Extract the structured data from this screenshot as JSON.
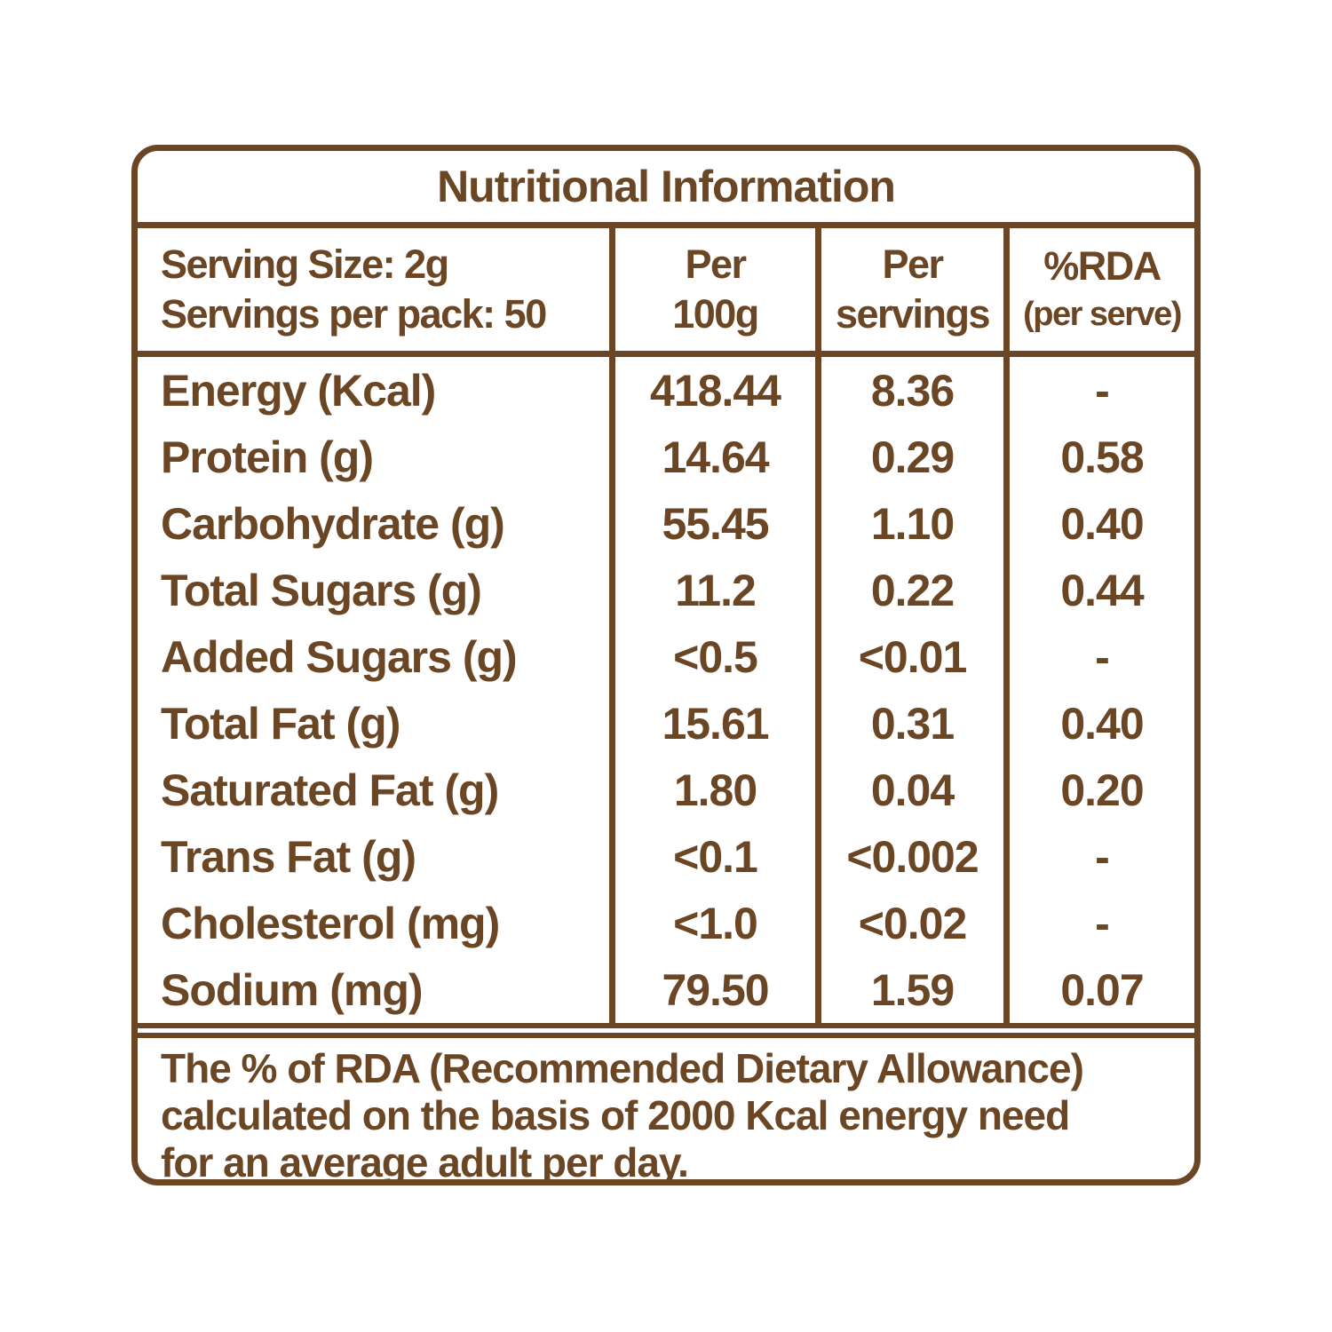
{
  "title": "Nutritional Information",
  "header": {
    "serving_size": "Serving Size: 2g",
    "servings_per_pack": "Servings per pack: 50",
    "col_per100g_line1": "Per",
    "col_per100g_line2": "100g",
    "col_per_servings_line1": "Per",
    "col_per_servings_line2": "servings",
    "col_rda_line1": "%RDA",
    "col_rda_line2": "(per serve)"
  },
  "rows": [
    {
      "label": "Energy (Kcal)",
      "per100g": "418.44",
      "per_serving": "8.36",
      "rda": "-"
    },
    {
      "label": "Protein (g)",
      "per100g": "14.64",
      "per_serving": "0.29",
      "rda": "0.58"
    },
    {
      "label": "Carbohydrate (g)",
      "per100g": "55.45",
      "per_serving": "1.10",
      "rda": "0.40"
    },
    {
      "label": "Total Sugars (g)",
      "per100g": "11.2",
      "per_serving": "0.22",
      "rda": "0.44"
    },
    {
      "label": "Added Sugars (g)",
      "per100g": "<0.5",
      "per_serving": "<0.01",
      "rda": "-"
    },
    {
      "label": "Total Fat (g)",
      "per100g": "15.61",
      "per_serving": "0.31",
      "rda": "0.40"
    },
    {
      "label": "Saturated Fat (g)",
      "per100g": "1.80",
      "per_serving": "0.04",
      "rda": "0.20"
    },
    {
      "label": "Trans Fat (g)",
      "per100g": "<0.1",
      "per_serving": "<0.002",
      "rda": "-"
    },
    {
      "label": "Cholesterol (mg)",
      "per100g": "<1.0",
      "per_serving": "<0.02",
      "rda": "-"
    },
    {
      "label": "Sodium (mg)",
      "per100g": "79.50",
      "per_serving": "1.59",
      "rda": "0.07"
    }
  ],
  "footer": {
    "line1": "The % of RDA (Recommended Dietary Allowance)",
    "line2": "calculated on the basis of 2000 Kcal energy need",
    "line3": "for an average adult per day."
  },
  "colors": {
    "brown": "#6b4625",
    "background": "#ffffff"
  }
}
